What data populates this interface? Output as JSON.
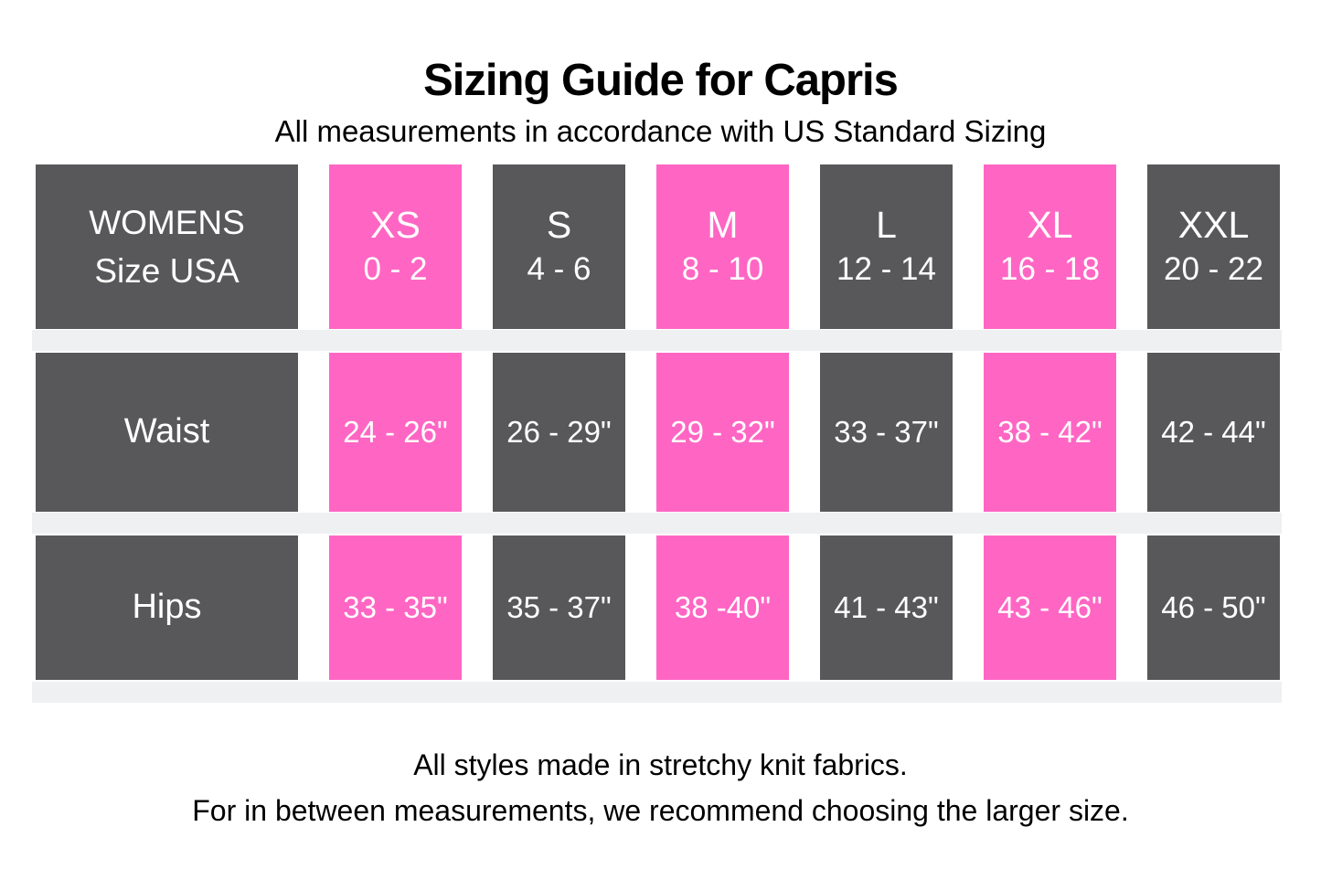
{
  "title": "Sizing Guide for Capris",
  "subtitle": "All measurements in accordance with US Standard Sizing",
  "colors": {
    "highlight_pink": "#FF66C4",
    "cell_dark_gray": "#58585A",
    "row_divider_gray": "#EFF0F2",
    "cell_text": "#FFFFFF",
    "page_text": "#000000"
  },
  "table": {
    "header": {
      "label_line1": "WOMENS",
      "label_line2": "Size USA",
      "sizes": [
        {
          "name": "XS",
          "range": "0 - 2",
          "highlight": true
        },
        {
          "name": "S",
          "range": "4 - 6",
          "highlight": false
        },
        {
          "name": "M",
          "range": "8 - 10",
          "highlight": true
        },
        {
          "name": "L",
          "range": "12 - 14",
          "highlight": false
        },
        {
          "name": "XL",
          "range": "16 - 18",
          "highlight": true
        },
        {
          "name": "XXL",
          "range": "20 - 22",
          "highlight": false
        }
      ]
    },
    "rows": [
      {
        "label": "Waist",
        "values": [
          "24 - 26\"",
          "26 - 29\"",
          "29 - 32\"",
          "33 - 37\"",
          "38 - 42\"",
          "42 - 44\""
        ]
      },
      {
        "label": "Hips",
        "values": [
          "33 - 35\"",
          "35 - 37\"",
          "38 -40\"",
          "41 - 43\"",
          "43 - 46\"",
          "46 - 50\""
        ]
      }
    ]
  },
  "footer": {
    "line1": "All styles made in stretchy knit fabrics.",
    "line2": "For in between measurements, we recommend choosing the larger size."
  },
  "chart_data": {
    "type": "table",
    "title": "Sizing Guide for Capris",
    "subtitle": "All measurements in accordance with US Standard Sizing",
    "columns": [
      "WOMENS Size USA",
      "XS 0 - 2",
      "S 4 - 6",
      "M 8 - 10",
      "L 12 - 14",
      "XL 16 - 18",
      "XXL 20 - 22"
    ],
    "rows": [
      [
        "Waist",
        "24 - 26\"",
        "26 - 29\"",
        "29 - 32\"",
        "33 - 37\"",
        "38 - 42\"",
        "42 - 44\""
      ],
      [
        "Hips",
        "33 - 35\"",
        "35 - 37\"",
        "38 -40\"",
        "41 - 43\"",
        "43 - 46\"",
        "46 - 50\""
      ]
    ],
    "highlighted_columns": [
      "XS",
      "M",
      "XL"
    ],
    "notes": [
      "All styles made in stretchy knit fabrics.",
      "For in between measurements, we recommend choosing the larger size."
    ]
  }
}
